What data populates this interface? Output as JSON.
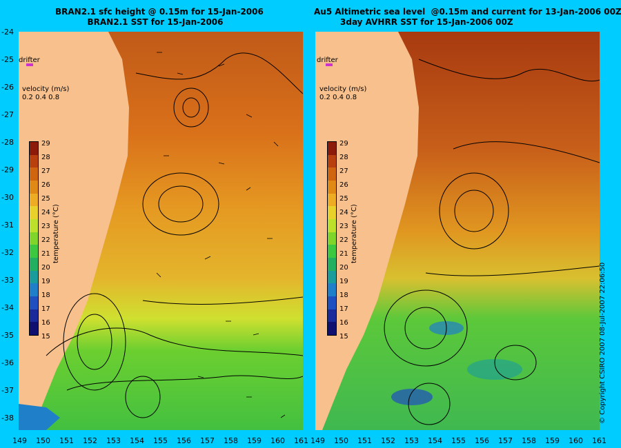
{
  "titles": {
    "left_line1": "BRAN2.1 sfc height @ 0.15m for 15-Jan-2006",
    "left_line2": "BRAN2.1 SST for 15-Jan-2006",
    "right_line1": "Au5 Altimetric sea level  @0.15m and current for 13-Jan-2006 00Z",
    "right_line2": "3day AVHRR SST for 15-Jan-2006 00Z"
  },
  "y_axis_labels": [
    "-24",
    "-25",
    "-26",
    "-27",
    "-28",
    "-29",
    "-30",
    "-31",
    "-32",
    "-33",
    "-34",
    "-35",
    "-36",
    "-37",
    "-38"
  ],
  "x_axis_left": [
    "149",
    "150",
    "151",
    "152",
    "153",
    "154",
    "155",
    "156",
    "157",
    "158",
    "159",
    "160",
    "161"
  ],
  "x_axis_right": [
    "149",
    "150",
    "151",
    "152",
    "153",
    "154",
    "155",
    "156",
    "157",
    "158",
    "159",
    "160",
    "161"
  ],
  "drifter_label": "drifter",
  "velocity_label": "velocity (m/s)",
  "velocity_scale": "0.2 0.4 0.8",
  "colorbar": {
    "title": "temperature (°C)",
    "labels": [
      "29",
      "28",
      "27",
      "26",
      "25",
      "24",
      "23",
      "22",
      "21",
      "20",
      "19",
      "18",
      "17",
      "16",
      "15"
    ],
    "colors": [
      "#8b1a0a",
      "#b8400f",
      "#d0650f",
      "#e08a15",
      "#eeac25",
      "#e8d12a",
      "#bde02a",
      "#7fd52a",
      "#3cc840",
      "#22b060",
      "#1a9c9c",
      "#1f7fc8",
      "#2050c0",
      "#1a2a9a",
      "#101070"
    ]
  },
  "copyright": "© Copyright CSIRO 2007  08-Jul-2007 22:06:50",
  "colors": {
    "background": "#00ccff",
    "land": "#f7c08d",
    "drifter": "#cc33cc"
  }
}
